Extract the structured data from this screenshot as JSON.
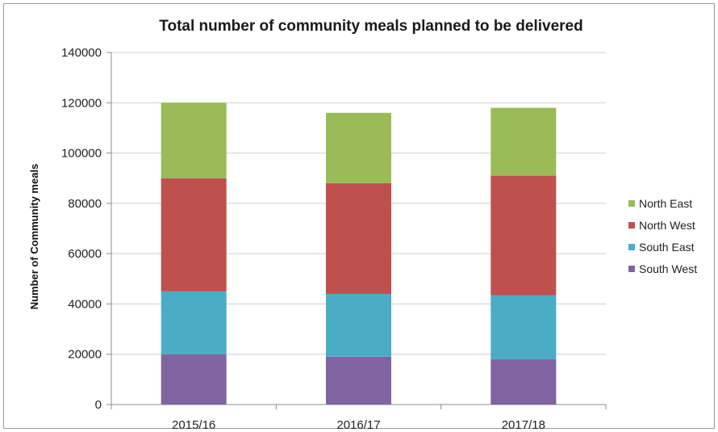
{
  "chart_data": {
    "type": "bar",
    "stacked": true,
    "title": "Total number of community meals planned to be delivered",
    "xlabel": "",
    "ylabel": "Number of Community meals",
    "categories": [
      "2015/16",
      "2016/17",
      "2017/18"
    ],
    "ylim": [
      0,
      140000
    ],
    "yticks": [
      0,
      20000,
      40000,
      60000,
      80000,
      100000,
      120000,
      140000
    ],
    "ytick_labels": [
      "0",
      "20000",
      "40000",
      "60000",
      "80000",
      "100000",
      "120000",
      "140000"
    ],
    "grid": true,
    "legend_position": "right",
    "series": [
      {
        "name": "South West",
        "color": "#8064A2",
        "values": [
          20000,
          19000,
          18000
        ]
      },
      {
        "name": "South East",
        "color": "#4BACC6",
        "values": [
          25000,
          25000,
          25500
        ]
      },
      {
        "name": "North West",
        "color": "#C0504D",
        "values": [
          45000,
          44000,
          47500
        ]
      },
      {
        "name": "North East",
        "color": "#9BBB59",
        "values": [
          30000,
          28000,
          27000
        ]
      }
    ],
    "legend_order": [
      "North East",
      "North West",
      "South East",
      "South West"
    ]
  }
}
